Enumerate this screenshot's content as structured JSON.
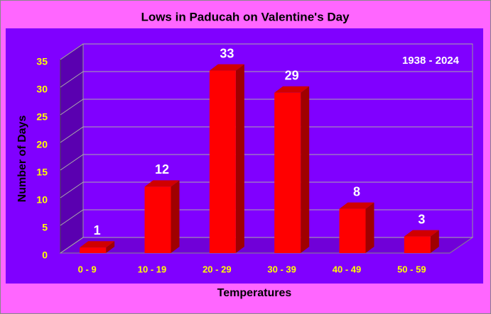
{
  "chart_data": {
    "type": "bar",
    "title": "Lows in Paducah on Valentine's Day",
    "annotation": "1938 - 2024",
    "xlabel": "Temperatures",
    "ylabel": "Number of Days",
    "categories": [
      "0 - 9",
      "10 - 19",
      "20 - 29",
      "30 - 39",
      "40 - 49",
      "50 - 59"
    ],
    "values": [
      1,
      12,
      33,
      29,
      8,
      3
    ],
    "color": "#ff0000",
    "ylim": [
      0,
      35
    ],
    "yticks": [
      0,
      5,
      10,
      15,
      20,
      25,
      30,
      35
    ],
    "grid": true
  }
}
